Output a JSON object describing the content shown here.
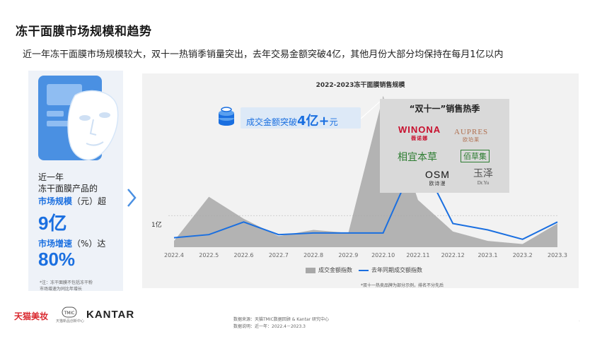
{
  "page": {
    "title": "冻干面膜市场规模和趋势",
    "subtitle": "近一年冻干面膜市场规模较大，双十一热销季销量突出，去年交易金额突破4亿，其他月份大部分均保持在每月1亿以内"
  },
  "left_panel": {
    "intro_line1": "近一年",
    "intro_line2": "冻干面膜产品的",
    "scale_label": "市场规模",
    "scale_unit": "（元）超",
    "scale_value": "9亿",
    "growth_label": "市场增速",
    "growth_unit": "（%）达",
    "growth_value": "80%",
    "footnote_line1": "*注：冻干面膜不包括冻干粉",
    "footnote_line2": "市场增速为同比年增长"
  },
  "callout": {
    "prefix": "成交金额突破",
    "value": "4亿+",
    "suffix": "元"
  },
  "brands": {
    "title": "“双十一”销售热季",
    "items": [
      {
        "name": "WINONA",
        "sub": "薇诺娜"
      },
      {
        "name": "AUPRES",
        "sub": "欧珀莱"
      },
      {
        "name": "相宜本草",
        "sub": ""
      },
      {
        "name": "佰草集",
        "sub": ""
      },
      {
        "name": "OSM",
        "sub": "欧诗漫"
      },
      {
        "name": "玉泽",
        "sub": "Dr.Yu"
      }
    ],
    "note": "*双十一热卖品牌为部分示例，排名不分先后"
  },
  "chart_data": {
    "type": "area",
    "title": "2022-2023冻干面膜销售规模",
    "categories": [
      "2022.4",
      "2022.5",
      "2022.6",
      "2022.7",
      "2022.8",
      "2022.9",
      "2022.10",
      "2022.11",
      "2022.12",
      "2023.1",
      "2023.2",
      "2023.3"
    ],
    "series": [
      {
        "name": "成交金额指数",
        "type": "area",
        "color": "#a8a8a8",
        "values": [
          0.2,
          1.6,
          0.9,
          0.35,
          0.55,
          0.45,
          4.8,
          1.5,
          0.5,
          0.2,
          0.1,
          0.75
        ]
      },
      {
        "name": "去年同期成交额指数",
        "type": "line",
        "color": "#1a6fe0",
        "values": [
          0.3,
          0.4,
          0.8,
          0.4,
          0.45,
          0.45,
          0.45,
          2.95,
          0.75,
          0.55,
          0.25,
          0.8
        ]
      }
    ],
    "ylim": [
      0,
      5.2
    ],
    "reference_line": {
      "value": 1,
      "label": "1亿"
    },
    "legend_position": "bottom",
    "grid": false
  },
  "footer": {
    "tmall_logo": "天猫美妆",
    "tmic_logo": "TMIC",
    "tmic_sub": "天猫新品创新中心",
    "kantar_logo": "KANTAR",
    "source_line1": "数据来源：天猫TMIC数据回顾 & Kantar 研究中心",
    "source_line2": "数据说明：近一年：2022.4－2023.3",
    "page_mark": "·"
  }
}
